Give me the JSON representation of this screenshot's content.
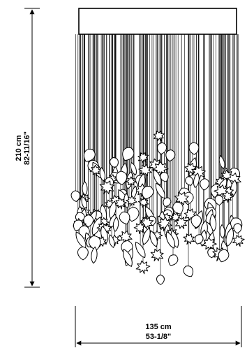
{
  "drawing": {
    "subject": "chandelier-with-leaf-pendants",
    "line_color": "#000000",
    "fill_color": "#ffffff"
  },
  "dimensions": {
    "height": {
      "metric": "210 cm",
      "imperial": "82-11/16\""
    },
    "width": {
      "metric": "135 cm",
      "imperial": "53-1/8\""
    }
  }
}
